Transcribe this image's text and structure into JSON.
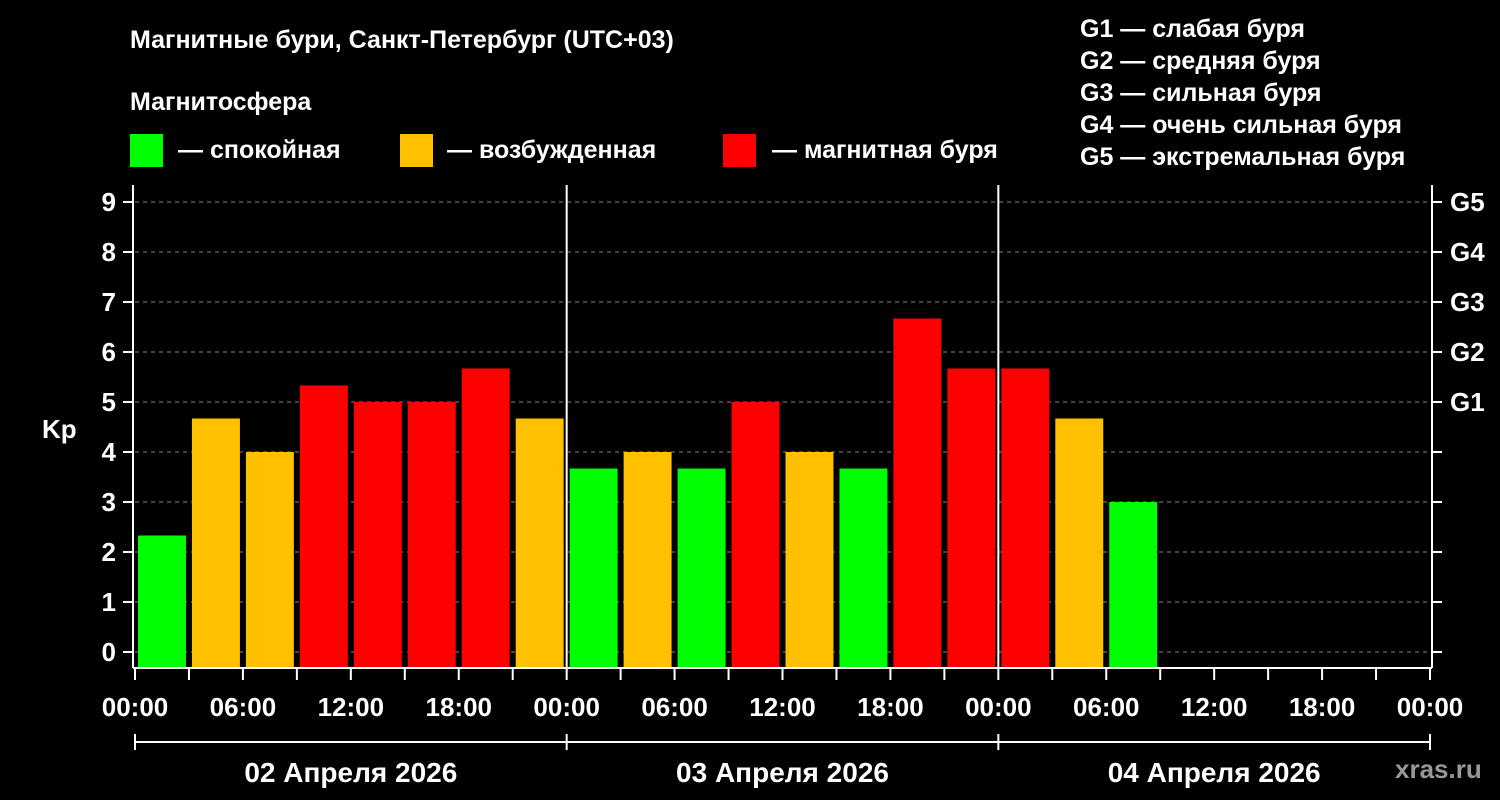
{
  "chart_data": {
    "type": "bar",
    "title": "Магнитные бури, Санкт-Петербург (UTC+03)",
    "legend_title": "Магнитосфера",
    "legend": [
      {
        "label": "— спокойная",
        "color": "#00ff00"
      },
      {
        "label": "— возбужденная",
        "color": "#ffc000"
      },
      {
        "label": "— магнитная буря",
        "color": "#ff0000"
      }
    ],
    "storm_scale": [
      "G1 — слабая буря",
      "G2 — средняя буря",
      "G3 — сильная буря",
      "G4 — очень сильная буря",
      "G5 — экстремальная буря"
    ],
    "ylabel": "Kp",
    "ylim": [
      0,
      9
    ],
    "y_ticks": [
      "0",
      "1",
      "2",
      "3",
      "4",
      "5",
      "6",
      "7",
      "8",
      "9"
    ],
    "right_ticks": [
      {
        "kp": 5,
        "label": "G1"
      },
      {
        "kp": 6,
        "label": "G2"
      },
      {
        "kp": 7,
        "label": "G3"
      },
      {
        "kp": 8,
        "label": "G4"
      },
      {
        "kp": 9,
        "label": "G5"
      }
    ],
    "x_tick_labels": [
      "00:00",
      "06:00",
      "12:00",
      "18:00",
      "00:00",
      "06:00",
      "12:00",
      "18:00",
      "00:00",
      "06:00",
      "12:00",
      "18:00",
      "00:00"
    ],
    "days": [
      "02 Апреля 2026",
      "03 Апреля 2026",
      "04 Апреля 2026"
    ],
    "interval_hours": 3,
    "values": [
      2.33,
      4.67,
      4.0,
      5.33,
      5.0,
      5.0,
      5.67,
      4.67,
      3.67,
      4.0,
      3.67,
      5.0,
      4.0,
      3.67,
      6.67,
      5.67,
      5.67,
      4.67,
      3.0
    ],
    "colors": {
      "calm": "#00ff00",
      "excited": "#ffc000",
      "storm": "#ff0000",
      "grid": "#888888"
    },
    "grid": true
  },
  "watermark": "xras.ru"
}
